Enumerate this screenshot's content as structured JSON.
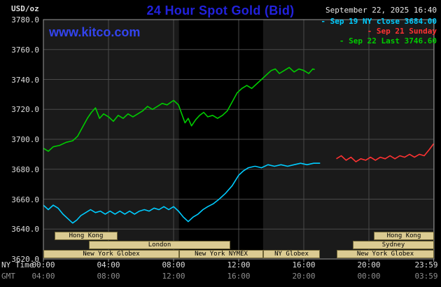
{
  "header": {
    "unit_label": "USD/oz",
    "title": "24 Hour Spot Gold (Bid)",
    "datetime": "September 22, 2025 16:40",
    "watermark": "www.kitco.com"
  },
  "colors": {
    "title": "#2222dd",
    "watermark": "#3344ee",
    "datetime_text": "#e8e8e8",
    "axis_text": "#dedede",
    "gmt_text": "#8f8f8f",
    "grid": "#4a4a4a",
    "plot_bg": "#1a1a1a",
    "band": "#000000",
    "plot_border": "#999999",
    "session_fill": "#dbcb92",
    "session_border": "#6e6436",
    "session_text": "#000000"
  },
  "chart_data": {
    "type": "line",
    "title": "24 Hour Spot Gold (Bid)",
    "ylabel": "USD/oz",
    "xlabel": "NY Time",
    "ylim": [
      3620,
      3780
    ],
    "xlim_hours": [
      0,
      24
    ],
    "grid": true,
    "legend_position": "top-right",
    "y_ticks": {
      "values": [
        3780,
        3760,
        3740,
        3720,
        3700,
        3680,
        3660,
        3640,
        3620
      ],
      "labels": [
        "3780.0",
        "3760.0",
        "3740.0",
        "3720.0",
        "3700.0",
        "3680.0",
        "3660.0",
        "3640.0",
        "3620.0"
      ]
    },
    "x_ticks": {
      "ny_row_label": "NY Time",
      "gmt_row_label": "GMT",
      "hours": [
        0,
        4,
        8,
        12,
        16,
        20,
        23.983
      ],
      "ny_labels": [
        "00:00",
        "04:00",
        "08:00",
        "12:00",
        "16:00",
        "20:00",
        "23:59"
      ],
      "gmt_labels": [
        "04:00",
        "08:00",
        "12:00",
        "16:00",
        "20:00",
        "00:00",
        "03:59"
      ]
    },
    "band": {
      "start_hour": 8.33,
      "end_hour": 13.5
    },
    "legend": [
      {
        "label": "- Sep 19 NY close 3684.00",
        "color": "#00ccff"
      },
      {
        "label": "- Sep 21 Sunday",
        "color": "#ff3232"
      },
      {
        "label": "- Sep 22 Last 3746.60",
        "color": "#00cc00"
      }
    ],
    "series": [
      {
        "name": "Sep 19",
        "color": "#00ccff",
        "close": 3684.0,
        "points": [
          [
            0,
            3656
          ],
          [
            0.3,
            3653
          ],
          [
            0.6,
            3656
          ],
          [
            0.9,
            3654
          ],
          [
            1.2,
            3650
          ],
          [
            1.5,
            3647
          ],
          [
            1.8,
            3644
          ],
          [
            2.05,
            3646
          ],
          [
            2.3,
            3649
          ],
          [
            2.6,
            3651
          ],
          [
            2.9,
            3653
          ],
          [
            3.2,
            3651
          ],
          [
            3.5,
            3652
          ],
          [
            3.8,
            3650
          ],
          [
            4.1,
            3652
          ],
          [
            4.4,
            3650
          ],
          [
            4.7,
            3652
          ],
          [
            5,
            3650
          ],
          [
            5.3,
            3652
          ],
          [
            5.6,
            3650
          ],
          [
            5.9,
            3652
          ],
          [
            6.2,
            3653
          ],
          [
            6.5,
            3652
          ],
          [
            6.8,
            3654
          ],
          [
            7.1,
            3653
          ],
          [
            7.4,
            3655
          ],
          [
            7.7,
            3653
          ],
          [
            8,
            3655
          ],
          [
            8.3,
            3652
          ],
          [
            8.6,
            3648
          ],
          [
            8.9,
            3645
          ],
          [
            9.2,
            3648
          ],
          [
            9.5,
            3650
          ],
          [
            9.8,
            3653
          ],
          [
            10.1,
            3655
          ],
          [
            10.45,
            3657
          ],
          [
            10.8,
            3660
          ],
          [
            11.2,
            3664
          ],
          [
            11.6,
            3669
          ],
          [
            12,
            3676
          ],
          [
            12.3,
            3679
          ],
          [
            12.6,
            3681
          ],
          [
            13,
            3682
          ],
          [
            13.4,
            3681
          ],
          [
            13.8,
            3683
          ],
          [
            14.2,
            3682
          ],
          [
            14.6,
            3683
          ],
          [
            15,
            3682
          ],
          [
            15.4,
            3683
          ],
          [
            15.8,
            3684
          ],
          [
            16.2,
            3683
          ],
          [
            16.6,
            3684
          ],
          [
            17,
            3684
          ]
        ]
      },
      {
        "name": "Sep 21",
        "color": "#ff3232",
        "points": [
          [
            18,
            3687
          ],
          [
            18.3,
            3689
          ],
          [
            18.6,
            3686
          ],
          [
            18.9,
            3688
          ],
          [
            19.2,
            3685
          ],
          [
            19.5,
            3687
          ],
          [
            19.8,
            3686
          ],
          [
            20.1,
            3688
          ],
          [
            20.4,
            3686
          ],
          [
            20.7,
            3688
          ],
          [
            21,
            3687
          ],
          [
            21.3,
            3689
          ],
          [
            21.6,
            3687
          ],
          [
            21.9,
            3689
          ],
          [
            22.2,
            3688
          ],
          [
            22.5,
            3690
          ],
          [
            22.8,
            3688
          ],
          [
            23.1,
            3690
          ],
          [
            23.4,
            3689
          ],
          [
            23.7,
            3693
          ],
          [
            23.98,
            3697
          ]
        ]
      },
      {
        "name": "Sep 22",
        "color": "#00cc00",
        "last": 3746.6,
        "points": [
          [
            0,
            3694
          ],
          [
            0.3,
            3692
          ],
          [
            0.6,
            3695
          ],
          [
            1,
            3696
          ],
          [
            1.4,
            3698
          ],
          [
            1.8,
            3699
          ],
          [
            2.1,
            3702
          ],
          [
            2.4,
            3708
          ],
          [
            2.7,
            3714
          ],
          [
            2.95,
            3718
          ],
          [
            3.2,
            3721
          ],
          [
            3.45,
            3714
          ],
          [
            3.7,
            3717
          ],
          [
            4,
            3715
          ],
          [
            4.3,
            3712
          ],
          [
            4.6,
            3716
          ],
          [
            4.9,
            3714
          ],
          [
            5.2,
            3717
          ],
          [
            5.5,
            3715
          ],
          [
            5.8,
            3717
          ],
          [
            6.1,
            3719
          ],
          [
            6.4,
            3722
          ],
          [
            6.7,
            3720
          ],
          [
            7,
            3722
          ],
          [
            7.3,
            3724
          ],
          [
            7.6,
            3723
          ],
          [
            8,
            3726
          ],
          [
            8.3,
            3723
          ],
          [
            8.5,
            3717
          ],
          [
            8.7,
            3711
          ],
          [
            8.9,
            3714
          ],
          [
            9.1,
            3709
          ],
          [
            9.35,
            3713
          ],
          [
            9.6,
            3716
          ],
          [
            9.85,
            3718
          ],
          [
            10.1,
            3715
          ],
          [
            10.4,
            3716
          ],
          [
            10.7,
            3714
          ],
          [
            11,
            3716
          ],
          [
            11.3,
            3719
          ],
          [
            11.6,
            3725
          ],
          [
            11.9,
            3731
          ],
          [
            12.2,
            3734
          ],
          [
            12.5,
            3736
          ],
          [
            12.8,
            3734
          ],
          [
            13.1,
            3737
          ],
          [
            13.4,
            3740
          ],
          [
            13.7,
            3743
          ],
          [
            14,
            3746
          ],
          [
            14.25,
            3747
          ],
          [
            14.5,
            3744
          ],
          [
            14.8,
            3746
          ],
          [
            15.1,
            3748
          ],
          [
            15.4,
            3745
          ],
          [
            15.7,
            3747
          ],
          [
            16,
            3746
          ],
          [
            16.3,
            3744
          ],
          [
            16.55,
            3747
          ],
          [
            16.67,
            3746.6
          ]
        ]
      }
    ],
    "sessions": [
      {
        "row": 0,
        "label": "Hong Kong",
        "start": 0.7,
        "end": 4.55
      },
      {
        "row": 0,
        "label": "Hong Kong",
        "start": 20.3,
        "end": 23.983
      },
      {
        "row": 1,
        "label": "London",
        "start": 2.8,
        "end": 11.5
      },
      {
        "row": 1,
        "label": "Sydney",
        "start": 19,
        "end": 23.983
      },
      {
        "row": 2,
        "label": "New York Globex",
        "start": 0,
        "end": 8.33
      },
      {
        "row": 2,
        "label": "New York NYMEX",
        "start": 8.33,
        "end": 13.5
      },
      {
        "row": 2,
        "label": "NY Globex",
        "start": 13.5,
        "end": 17
      },
      {
        "row": 2,
        "label": "New York Globex",
        "start": 18,
        "end": 23.983
      }
    ]
  }
}
